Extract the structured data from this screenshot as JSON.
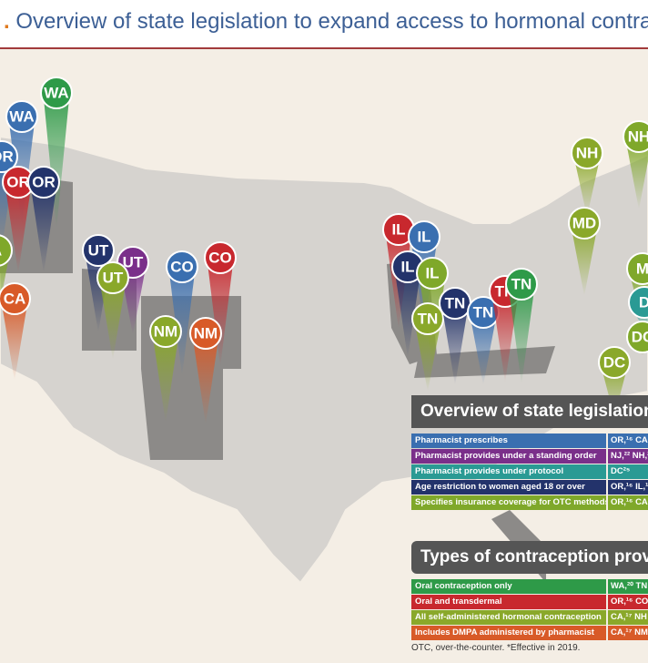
{
  "title": "Overview of state legislation to expand access to hormonal contracept",
  "pins": [
    {
      "label": "WA",
      "color": "#2e9a48"
    },
    {
      "label": "WA",
      "color": "#3a6fb0"
    },
    {
      "label": "OR",
      "color": "#3a6fb0"
    },
    {
      "label": "OR",
      "color": "#c8282e"
    },
    {
      "label": "OR",
      "color": "#23336b"
    },
    {
      "label": "A",
      "color": "#7fa82a"
    },
    {
      "label": "CA",
      "color": "#d85a28"
    },
    {
      "label": "UT",
      "color": "#23336b"
    },
    {
      "label": "UT",
      "color": "#7a2f8a"
    },
    {
      "label": "UT",
      "color": "#8aa82a"
    },
    {
      "label": "CO",
      "color": "#3a6fb0"
    },
    {
      "label": "CO",
      "color": "#c8282e"
    },
    {
      "label": "NM",
      "color": "#8aa82a"
    },
    {
      "label": "NM",
      "color": "#d85a28"
    },
    {
      "label": "IL",
      "color": "#c8282e"
    },
    {
      "label": "IL",
      "color": "#3a6fb0"
    },
    {
      "label": "IL",
      "color": "#23336b"
    },
    {
      "label": "IL",
      "color": "#7fa82a"
    },
    {
      "label": "TN",
      "color": "#8aa82a"
    },
    {
      "label": "TN",
      "color": "#23336b"
    },
    {
      "label": "TN",
      "color": "#3a6fb0"
    },
    {
      "label": "TN",
      "color": "#c8282e"
    },
    {
      "label": "TN",
      "color": "#2e9a48"
    },
    {
      "label": "NH",
      "color": "#8aa82a"
    },
    {
      "label": "NH",
      "color": "#7fa82a"
    },
    {
      "label": "MD",
      "color": "#8aa82a"
    },
    {
      "label": "M",
      "color": "#7fa82a"
    },
    {
      "label": "D",
      "color": "#2a9a94"
    },
    {
      "label": "DC",
      "color": "#7fa82a"
    },
    {
      "label": "DC",
      "color": "#8aa82a"
    }
  ],
  "legislation_table": {
    "title": "Overview of state legislation to expand access to hormonal contrace",
    "rows": [
      {
        "label": "Pharmacist prescribes",
        "states": "OR,¹⁶ CA,",
        "color": "#3a6fb0"
      },
      {
        "label": "Pharmacist provides under a standing order",
        "states": "NJ,²² NH,²",
        "color": "#7a2f8a"
      },
      {
        "label": "Pharmacist provides under protocol",
        "states": "DC²⁵",
        "color": "#2a9a94"
      },
      {
        "label": "Age restriction to women aged 18 or over",
        "states": "OR,¹⁶ IL,¹⁹",
        "color": "#23336b"
      },
      {
        "label": "Specifies insurance coverage for OTC methods",
        "states": "OR,¹⁶ CA,",
        "color": "#7fa82a"
      }
    ]
  },
  "types_table": {
    "title": "Types of contraception prov",
    "rows": [
      {
        "label": "Oral contraception only",
        "states": "WA,²⁰ TN",
        "color": "#2e9a48"
      },
      {
        "label": "Oral and transdermal",
        "states": "OR,¹⁶ CO",
        "color": "#c8282e"
      },
      {
        "label": "All self-administered hormonal contraception",
        "states": "CA,¹⁷ NH",
        "color": "#8aa82a"
      },
      {
        "label": "Includes DMPA administered by pharmacist",
        "states": "CA,¹⁷ NM",
        "color": "#d85a28"
      }
    ]
  },
  "footnote": "OTC, over-the-counter. *Effective in 2019."
}
